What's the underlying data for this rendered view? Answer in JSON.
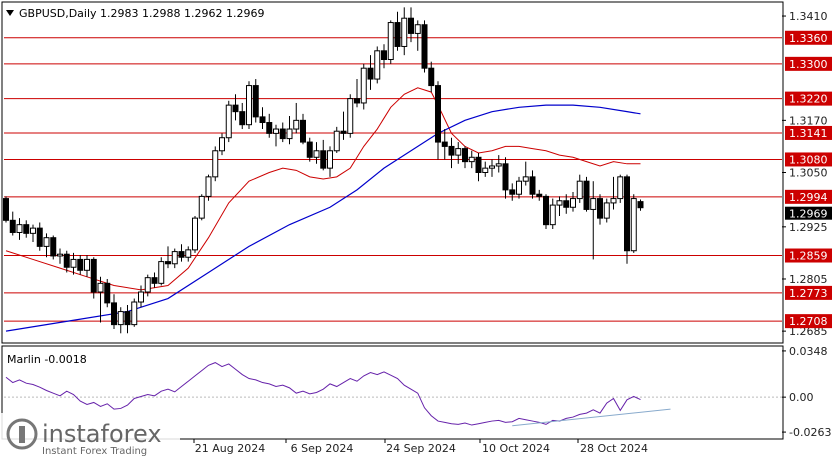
{
  "header": {
    "symbol_line": "GBPUSD,Daily  1.2983 1.2988 1.2962 1.2969"
  },
  "indicator": {
    "label": "Marlin -0.0018",
    "ticks": [
      "0.0348",
      "0.00",
      "-0.0263"
    ]
  },
  "watermark": {
    "brand": "instaforex",
    "tagline": "Instant Forex Trading"
  },
  "colors": {
    "background": "#ffffff",
    "resistance_line": "#cc0000",
    "badge": "#cc0000",
    "ma_fast": "#cc0000",
    "ma_slow": "#0000cc",
    "oscillator": "#6622aa",
    "oscillator_trend": "#88aacc",
    "candle": "#000000",
    "price_badge": "#000000"
  },
  "chart_data": {
    "type": "candlestick",
    "symbol": "GBPUSD",
    "timeframe": "Daily",
    "ohlc_header": {
      "open": 1.2983,
      "high": 1.2988,
      "low": 1.2962,
      "close": 1.2969
    },
    "y_range": [
      1.266,
      1.344
    ],
    "y_ticks": [
      "1.3410",
      "1.3170",
      "1.3050",
      "1.2925",
      "1.2805",
      "1.2685"
    ],
    "x_ticks": [
      "21 Aug 2024",
      "6 Sep 2024",
      "24 Sep 2024",
      "10 Oct 2024",
      "28 Oct 2024"
    ],
    "levels": [
      1.336,
      1.33,
      1.322,
      1.3141,
      1.308,
      1.2994,
      1.2859,
      1.2773,
      1.2708
    ],
    "level_labels": [
      "1.3360",
      "1.3300",
      "1.3220",
      "1.3141",
      "1.3080",
      "1.2994",
      "1.2859",
      "1.2773",
      "1.2708"
    ],
    "current_price": 1.2969,
    "current_price_label": "1.2969",
    "candles": [
      [
        1.299,
        1.2995,
        1.2935,
        1.294
      ],
      [
        1.294,
        1.296,
        1.2905,
        1.2912
      ],
      [
        1.2912,
        1.2945,
        1.2895,
        1.293
      ],
      [
        1.293,
        1.294,
        1.29,
        1.291
      ],
      [
        1.291,
        1.293,
        1.289,
        1.2922
      ],
      [
        1.2922,
        1.2935,
        1.287,
        1.288
      ],
      [
        1.288,
        1.291,
        1.2855,
        1.29
      ],
      [
        1.29,
        1.2905,
        1.285,
        1.2858
      ],
      [
        1.2858,
        1.2875,
        1.284,
        1.2862
      ],
      [
        1.2862,
        1.287,
        1.282,
        1.2832
      ],
      [
        1.2832,
        1.2865,
        1.2815,
        1.285
      ],
      [
        1.285,
        1.286,
        1.2815,
        1.2825
      ],
      [
        1.2825,
        1.286,
        1.281,
        1.285
      ],
      [
        1.285,
        1.2855,
        1.276,
        1.2775
      ],
      [
        1.2775,
        1.281,
        1.2705,
        1.2795
      ],
      [
        1.2795,
        1.2805,
        1.274,
        1.275
      ],
      [
        1.275,
        1.277,
        1.269,
        1.27
      ],
      [
        1.27,
        1.274,
        1.268,
        1.273
      ],
      [
        1.273,
        1.2745,
        1.268,
        1.27
      ],
      [
        1.27,
        1.276,
        1.2695,
        1.2752
      ],
      [
        1.2752,
        1.279,
        1.274,
        1.2775
      ],
      [
        1.2775,
        1.2815,
        1.2765,
        1.2808
      ],
      [
        1.2808,
        1.282,
        1.2785,
        1.2795
      ],
      [
        1.2795,
        1.2855,
        1.279,
        1.2845
      ],
      [
        1.2845,
        1.288,
        1.283,
        1.284
      ],
      [
        1.284,
        1.2875,
        1.283,
        1.2868
      ],
      [
        1.2868,
        1.2885,
        1.2845,
        1.2855
      ],
      [
        1.2855,
        1.288,
        1.2845,
        1.2872
      ],
      [
        1.2872,
        1.295,
        1.2865,
        1.2945
      ],
      [
        1.2945,
        1.3,
        1.294,
        1.2995
      ],
      [
        1.2995,
        1.3045,
        1.2985,
        1.304
      ],
      [
        1.304,
        1.311,
        1.303,
        1.31
      ],
      [
        1.31,
        1.314,
        1.309,
        1.313
      ],
      [
        1.313,
        1.3215,
        1.312,
        1.3205
      ],
      [
        1.3205,
        1.323,
        1.317,
        1.319
      ],
      [
        1.319,
        1.321,
        1.315,
        1.316
      ],
      [
        1.316,
        1.326,
        1.315,
        1.325
      ],
      [
        1.325,
        1.3265,
        1.3165,
        1.3178
      ],
      [
        1.3178,
        1.32,
        1.315,
        1.3165
      ],
      [
        1.3165,
        1.3185,
        1.313,
        1.314
      ],
      [
        1.314,
        1.316,
        1.311,
        1.315
      ],
      [
        1.315,
        1.3165,
        1.312,
        1.3128
      ],
      [
        1.3128,
        1.318,
        1.3115,
        1.315
      ],
      [
        1.315,
        1.321,
        1.314,
        1.317
      ],
      [
        1.317,
        1.3185,
        1.3115,
        1.312
      ],
      [
        1.312,
        1.313,
        1.3075,
        1.3085
      ],
      [
        1.3085,
        1.312,
        1.307,
        1.31
      ],
      [
        1.31,
        1.3125,
        1.3055,
        1.306
      ],
      [
        1.306,
        1.311,
        1.304,
        1.31
      ],
      [
        1.31,
        1.3155,
        1.3095,
        1.3145
      ],
      [
        1.3145,
        1.319,
        1.3125,
        1.314
      ],
      [
        1.314,
        1.323,
        1.313,
        1.322
      ],
      [
        1.322,
        1.3265,
        1.32,
        1.321
      ],
      [
        1.321,
        1.33,
        1.3195,
        1.329
      ],
      [
        1.329,
        1.332,
        1.324,
        1.3265
      ],
      [
        1.3265,
        1.334,
        1.3255,
        1.333
      ],
      [
        1.333,
        1.3345,
        1.329,
        1.331
      ],
      [
        1.331,
        1.34,
        1.33,
        1.3395
      ],
      [
        1.3395,
        1.342,
        1.333,
        1.334
      ],
      [
        1.334,
        1.343,
        1.332,
        1.3405
      ],
      [
        1.3405,
        1.343,
        1.335,
        1.337
      ],
      [
        1.337,
        1.34,
        1.333,
        1.339
      ],
      [
        1.339,
        1.34,
        1.328,
        1.329
      ],
      [
        1.329,
        1.3305,
        1.3235,
        1.325
      ],
      [
        1.325,
        1.326,
        1.308,
        1.312
      ],
      [
        1.312,
        1.315,
        1.308,
        1.311
      ],
      [
        1.311,
        1.313,
        1.306,
        1.309
      ],
      [
        1.309,
        1.312,
        1.307,
        1.3105
      ],
      [
        1.3105,
        1.311,
        1.306,
        1.3075
      ],
      [
        1.3075,
        1.31,
        1.306,
        1.3085
      ],
      [
        1.3085,
        1.3095,
        1.303,
        1.305
      ],
      [
        1.305,
        1.3075,
        1.304,
        1.306
      ],
      [
        1.306,
        1.308,
        1.304,
        1.3065
      ],
      [
        1.3065,
        1.309,
        1.305,
        1.307
      ],
      [
        1.307,
        1.3085,
        1.299,
        1.301
      ],
      [
        1.301,
        1.3025,
        1.2985,
        1.3
      ],
      [
        1.3,
        1.304,
        1.299,
        1.303
      ],
      [
        1.303,
        1.3075,
        1.302,
        1.304
      ],
      [
        1.304,
        1.3055,
        1.299,
        1.3
      ],
      [
        1.3,
        1.301,
        1.2985,
        1.2995
      ],
      [
        1.2995,
        1.3,
        1.292,
        1.293
      ],
      [
        1.293,
        1.299,
        1.292,
        1.2975
      ],
      [
        1.2975,
        1.2995,
        1.295,
        1.2985
      ],
      [
        1.2985,
        1.3,
        1.2955,
        1.297
      ],
      [
        1.297,
        1.3005,
        1.296,
        1.299
      ],
      [
        1.299,
        1.3045,
        1.298,
        1.303
      ],
      [
        1.303,
        1.304,
        1.296,
        1.2965
      ],
      [
        1.2965,
        1.303,
        1.285,
        1.299
      ],
      [
        1.299,
        1.3,
        1.293,
        1.2945
      ],
      [
        1.2945,
        1.299,
        1.2935,
        1.298
      ],
      [
        1.298,
        1.304,
        1.2965,
        1.299
      ],
      [
        1.299,
        1.3045,
        1.298,
        1.304
      ],
      [
        1.304,
        1.3045,
        1.284,
        1.287
      ],
      [
        1.287,
        1.3,
        1.2865,
        1.299
      ],
      [
        1.2983,
        1.2988,
        1.2962,
        1.2969
      ]
    ],
    "ma_fast": [
      [
        0,
        1.287
      ],
      [
        4,
        1.285
      ],
      [
        8,
        1.283
      ],
      [
        12,
        1.281
      ],
      [
        16,
        1.279
      ],
      [
        20,
        1.278
      ],
      [
        24,
        1.279
      ],
      [
        27,
        1.283
      ],
      [
        30,
        1.29
      ],
      [
        33,
        1.298
      ],
      [
        36,
        1.303
      ],
      [
        39,
        1.305
      ],
      [
        41,
        1.306
      ],
      [
        43,
        1.3055
      ],
      [
        45,
        1.304
      ],
      [
        47,
        1.3035
      ],
      [
        49,
        1.304
      ],
      [
        51,
        1.306
      ],
      [
        53,
        1.311
      ],
      [
        55,
        1.315
      ],
      [
        57,
        1.32
      ],
      [
        59,
        1.323
      ],
      [
        61,
        1.3245
      ],
      [
        63,
        1.3235
      ],
      [
        64,
        1.3205
      ],
      [
        66,
        1.314
      ],
      [
        68,
        1.311
      ],
      [
        70,
        1.3095
      ],
      [
        72,
        1.31
      ],
      [
        74,
        1.311
      ],
      [
        76,
        1.311
      ],
      [
        78,
        1.3105
      ],
      [
        80,
        1.31
      ],
      [
        82,
        1.309
      ],
      [
        84,
        1.3085
      ],
      [
        86,
        1.3075
      ],
      [
        88,
        1.3065
      ],
      [
        90,
        1.3075
      ],
      [
        92,
        1.307
      ],
      [
        94,
        1.307
      ]
    ],
    "ma_slow": [
      [
        0,
        1.2685
      ],
      [
        10,
        1.271
      ],
      [
        18,
        1.273
      ],
      [
        24,
        1.276
      ],
      [
        30,
        1.282
      ],
      [
        36,
        1.288
      ],
      [
        42,
        1.293
      ],
      [
        48,
        1.297
      ],
      [
        52,
        1.301
      ],
      [
        56,
        1.306
      ],
      [
        60,
        1.31
      ],
      [
        64,
        1.314
      ],
      [
        68,
        1.317
      ],
      [
        72,
        1.319
      ],
      [
        76,
        1.32
      ],
      [
        80,
        1.3205
      ],
      [
        84,
        1.3205
      ],
      [
        88,
        1.32
      ],
      [
        92,
        1.319
      ],
      [
        94,
        1.3185
      ]
    ],
    "oscillator": {
      "range": [
        -0.03,
        0.037
      ],
      "values": [
        0.015,
        0.011,
        0.013,
        0.0105,
        0.0095,
        0.0075,
        0.005,
        0.003,
        0.001,
        0.0045,
        0.002,
        -0.003,
        -0.0055,
        -0.004,
        -0.007,
        -0.005,
        -0.009,
        -0.0085,
        -0.006,
        -0.001,
        0.0005,
        0.002,
        0.001,
        0.0045,
        0.006,
        0.004,
        0.008,
        0.012,
        0.016,
        0.02,
        0.024,
        0.026,
        0.023,
        0.025,
        0.021,
        0.017,
        0.014,
        0.013,
        0.011,
        0.01,
        0.008,
        0.009,
        0.007,
        0.003,
        0.0045,
        0.0025,
        0.0035,
        0.006,
        0.01,
        0.008,
        0.011,
        0.014,
        0.012,
        0.016,
        0.0185,
        0.017,
        0.019,
        0.0165,
        0.014,
        0.009,
        0.006,
        0.003,
        -0.008,
        -0.014,
        -0.018,
        -0.019,
        -0.02,
        -0.0205,
        -0.0195,
        -0.021,
        -0.02,
        -0.019,
        -0.018,
        -0.0175,
        -0.019,
        -0.0185,
        -0.016,
        -0.017,
        -0.018,
        -0.019,
        -0.0205,
        -0.0175,
        -0.018,
        -0.016,
        -0.015,
        -0.013,
        -0.012,
        -0.0095,
        -0.012,
        -0.0045,
        -0.001,
        -0.01,
        -0.002,
        0.0005,
        -0.0018
      ],
      "trend_from": [
        75,
        -0.0215
      ],
      "trend_to": [
        94,
        -0.0075
      ]
    }
  }
}
